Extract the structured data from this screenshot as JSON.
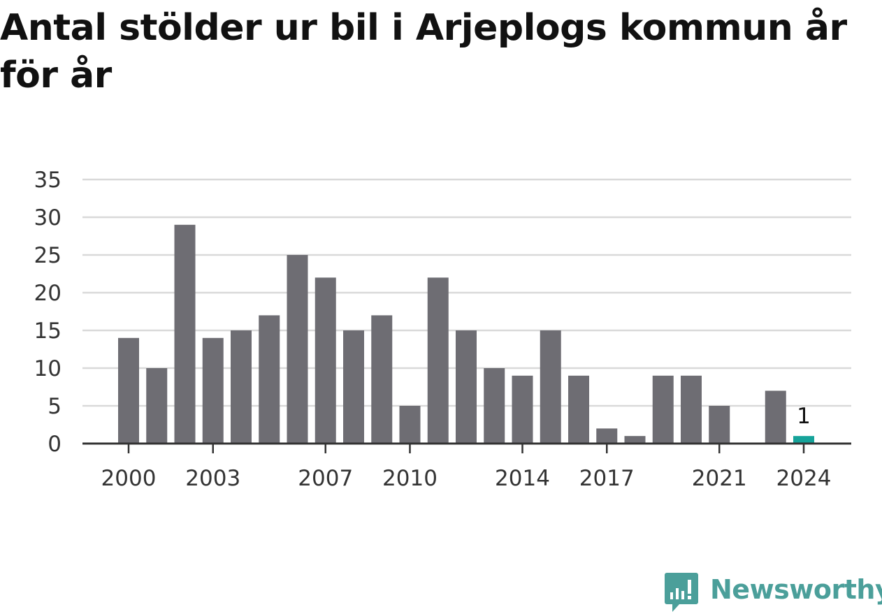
{
  "title": "Antal stölder ur bil i Arjeplogs kommun år för år",
  "brand": {
    "name": "Newsworthy",
    "color": "#4b9f9a"
  },
  "colors": {
    "bar": "#6e6d73",
    "highlight": "#16a39a",
    "grid": "#d9d9d9",
    "axis": "#333333",
    "text": "#111111"
  },
  "chart_data": {
    "type": "bar",
    "title": "Antal stölder ur bil i Arjeplogs kommun år för år",
    "xlabel": "",
    "ylabel": "",
    "ylim": [
      0,
      35
    ],
    "yticks": [
      0,
      5,
      10,
      15,
      20,
      25,
      30,
      35
    ],
    "grid": true,
    "categories": [
      2000,
      2001,
      2002,
      2003,
      2004,
      2005,
      2006,
      2007,
      2008,
      2009,
      2010,
      2011,
      2012,
      2013,
      2014,
      2015,
      2016,
      2017,
      2018,
      2019,
      2020,
      2021,
      2022,
      2023,
      2024
    ],
    "values": [
      14,
      10,
      29,
      14,
      15,
      17,
      25,
      22,
      15,
      17,
      5,
      22,
      15,
      10,
      9,
      15,
      9,
      2,
      1,
      9,
      9,
      5,
      0,
      7,
      1
    ],
    "xtick_labels": [
      2000,
      2003,
      2007,
      2010,
      2014,
      2017,
      2021,
      2024
    ],
    "highlight_category": 2024,
    "annotations": [
      {
        "category": 2024,
        "text": "1"
      }
    ]
  }
}
